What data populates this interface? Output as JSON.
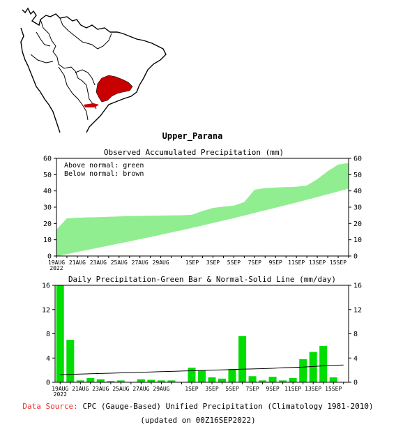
{
  "region_title": "Upper_Parana",
  "inset_map": {
    "highlight_color": "#c80000"
  },
  "colors": {
    "above_normal": "#90ee90",
    "below_normal": "#bc8f8f",
    "bar": "#00dd00",
    "normal_line": "#000000"
  },
  "footer": {
    "source_label": "Data Source:",
    "source_text": "CPC (Gauge-Based) Unified Precipitation (Climatology 1981-2010)",
    "updated": "(updated on 00Z16SEP2022)"
  },
  "chart_data": [
    {
      "type": "area",
      "title": "Observed Accumulated Precipitation (mm)",
      "legend": [
        "Above normal: green",
        "Below normal: brown"
      ],
      "legend_placement": "top-left",
      "x_start": "19AUG2022",
      "x": [
        "19AUG",
        "20AUG",
        "21AUG",
        "22AUG",
        "23AUG",
        "24AUG",
        "25AUG",
        "26AUG",
        "27AUG",
        "28AUG",
        "29AUG",
        "30AUG",
        "31AUG",
        "1SEP",
        "2SEP",
        "3SEP",
        "4SEP",
        "5SEP",
        "6SEP",
        "7SEP",
        "8SEP",
        "9SEP",
        "10SEP",
        "11SEP",
        "12SEP",
        "13SEP",
        "14SEP",
        "15SEP",
        "16SEP"
      ],
      "xticks": [
        "19AUG\n2022",
        "21AUG",
        "23AUG",
        "25AUG",
        "27AUG",
        "29AUG",
        "1SEP",
        "3SEP",
        "5SEP",
        "7SEP",
        "9SEP",
        "11SEP",
        "13SEP",
        "15SEP"
      ],
      "series": [
        {
          "name": "observed",
          "values": [
            16,
            23,
            23.3,
            23.6,
            23.8,
            24,
            24.2,
            24.4,
            24.5,
            24.6,
            24.7,
            24.8,
            24.9,
            25.2,
            27.5,
            29.4,
            30.2,
            30.8,
            33,
            40.6,
            41.6,
            41.9,
            42.2,
            42.4,
            43.2,
            47,
            52,
            56,
            57
          ]
        },
        {
          "name": "normal",
          "values": [
            0,
            1.3,
            2.6,
            3.9,
            5.2,
            6.5,
            7.8,
            9.1,
            10.5,
            11.8,
            13.2,
            14.6,
            16,
            17.4,
            18.9,
            20.4,
            21.9,
            23.4,
            25,
            26.6,
            28.2,
            29.8,
            31.4,
            33,
            34.7,
            36.4,
            38.1,
            39.8,
            41.5
          ]
        }
      ],
      "ylim": [
        0,
        60
      ],
      "yticks": [
        0,
        10,
        20,
        30,
        40,
        50,
        60
      ],
      "grid": false
    },
    {
      "type": "bar",
      "title": "Daily Precipitation-Green Bar & Normal-Solid Line (mm/day)",
      "x": [
        "19AUG",
        "20AUG",
        "21AUG",
        "22AUG",
        "23AUG",
        "24AUG",
        "25AUG",
        "26AUG",
        "27AUG",
        "28AUG",
        "29AUG",
        "30AUG",
        "31AUG",
        "1SEP",
        "2SEP",
        "3SEP",
        "4SEP",
        "5SEP",
        "6SEP",
        "7SEP",
        "8SEP",
        "9SEP",
        "10SEP",
        "11SEP",
        "12SEP",
        "13SEP",
        "14SEP",
        "15SEP",
        "16SEP"
      ],
      "xticks": [
        "19AUG\n2022",
        "21AUG",
        "23AUG",
        "25AUG",
        "27AUG",
        "29AUG",
        "1SEP",
        "3SEP",
        "5SEP",
        "7SEP",
        "9SEP",
        "11SEP",
        "13SEP",
        "15SEP"
      ],
      "series": [
        {
          "name": "daily",
          "values": [
            16,
            7,
            0.3,
            0.7,
            0.5,
            0.2,
            0.3,
            0,
            0.5,
            0.4,
            0.3,
            0.3,
            0,
            2.4,
            1.9,
            0.8,
            0.6,
            2.2,
            7.6,
            1,
            0.3,
            0.9,
            0.3,
            0.7,
            3.8,
            5,
            6,
            0.8,
            0
          ]
        },
        {
          "name": "normal",
          "values": [
            1.25,
            1.3,
            1.35,
            1.4,
            1.45,
            1.5,
            1.55,
            1.6,
            1.65,
            1.7,
            1.75,
            1.8,
            1.85,
            1.9,
            1.95,
            2,
            2.05,
            2.1,
            2.15,
            2.2,
            2.25,
            2.3,
            2.4,
            2.45,
            2.5,
            2.6,
            2.7,
            2.8,
            2.85
          ]
        }
      ],
      "ylim": [
        0,
        16
      ],
      "yticks": [
        0,
        4,
        8,
        12,
        16
      ],
      "grid": false
    }
  ]
}
